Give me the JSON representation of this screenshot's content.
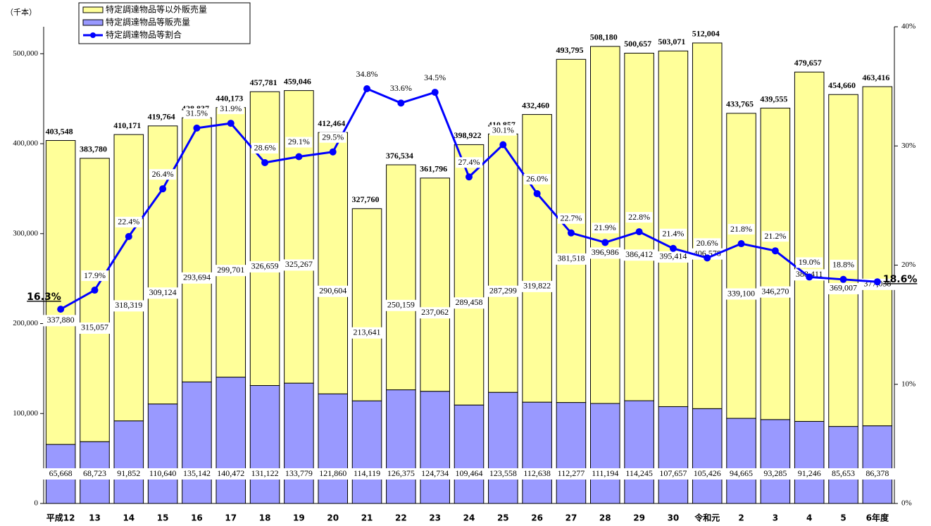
{
  "chart_data": {
    "type": "bar",
    "y_axis_label": "（千本）",
    "categories": [
      "平成12",
      "13",
      "14",
      "15",
      "16",
      "17",
      "18",
      "19",
      "20",
      "21",
      "22",
      "23",
      "24",
      "25",
      "26",
      "27",
      "28",
      "29",
      "30",
      "令和元",
      "2",
      "3",
      "4",
      "5",
      "6年度"
    ],
    "series": [
      {
        "name": "特定調達物品等以外販売量",
        "color": "#ffff99",
        "values": [
          337880,
          315057,
          318319,
          309124,
          293694,
          299701,
          326659,
          325267,
          290604,
          213641,
          250159,
          237062,
          289458,
          287299,
          319822,
          381518,
          396986,
          386412,
          395414,
          406578,
          339100,
          346270,
          388411,
          369007,
          377038
        ],
        "value_labels": [
          "337,880",
          "315,057",
          "318,319",
          "309,124",
          "293,694",
          "299,701",
          "326,659",
          "325,267",
          "290,604",
          "213,641",
          "250,159",
          "237,062",
          "289,458",
          "287,299",
          "319,822",
          "381,518",
          "396,986",
          "386,412",
          "395,414",
          "406,578",
          "339,100",
          "346,270",
          "388,411",
          "369,007",
          "377,038"
        ]
      },
      {
        "name": "特定調達物品等販売量",
        "color": "#9999ff",
        "values": [
          65668,
          68723,
          91852,
          110640,
          135142,
          140472,
          131122,
          133779,
          121860,
          114119,
          126375,
          124734,
          109464,
          123558,
          112638,
          112277,
          111194,
          114245,
          107657,
          105426,
          94665,
          93285,
          91246,
          85653,
          86378
        ],
        "value_labels": [
          "65,668",
          "68,723",
          "91,852",
          "110,640",
          "135,142",
          "140,472",
          "131,122",
          "133,779",
          "121,860",
          "114,119",
          "126,375",
          "124,734",
          "109,464",
          "123,558",
          "112,638",
          "112,277",
          "111,194",
          "114,245",
          "107,657",
          "105,426",
          "94,665",
          "93,285",
          "91,246",
          "85,653",
          "86,378"
        ]
      },
      {
        "name": "特定調達物品等割合",
        "color": "#0000ff",
        "type": "line",
        "axis": "y2",
        "values": [
          16.3,
          17.9,
          22.4,
          26.4,
          31.5,
          31.9,
          28.6,
          29.1,
          29.5,
          34.8,
          33.6,
          34.5,
          27.4,
          30.1,
          26.0,
          22.7,
          21.9,
          22.8,
          21.4,
          20.6,
          21.8,
          21.2,
          19.0,
          18.8,
          18.6
        ],
        "value_labels": [
          "16.3%",
          "17.9%",
          "22.4%",
          "26.4%",
          "31.5%",
          "31.9%",
          "28.6%",
          "29.1%",
          "29.5%",
          "34.8%",
          "33.6%",
          "34.5%",
          "27.4%",
          "30.1%",
          "26.0%",
          "22.7%",
          "21.9%",
          "22.8%",
          "21.4%",
          "20.6%",
          "21.8%",
          "21.2%",
          "19.0%",
          "18.8%",
          "18.6%"
        ]
      }
    ],
    "totals": [
      403548,
      383780,
      410171,
      419764,
      428837,
      440173,
      457781,
      459046,
      412464,
      327760,
      376534,
      361796,
      398922,
      410857,
      432460,
      493795,
      508180,
      500657,
      503071,
      512004,
      433765,
      439555,
      479657,
      454660,
      463416
    ],
    "total_labels": [
      "403,548",
      "383,780",
      "410,171",
      "419,764",
      "428,837",
      "440,173",
      "457,781",
      "459,046",
      "412,464",
      "327,760",
      "376,534",
      "361,796",
      "398,922",
      "410,857",
      "432,460",
      "493,795",
      "508,180",
      "500,657",
      "503,071",
      "512,004",
      "433,765",
      "439,555",
      "479,657",
      "454,660",
      "463,416"
    ],
    "ylim": [
      0,
      530000
    ],
    "yticks": [
      0,
      {
        "value": 100000,
        "label": "100,000"
      },
      {
        "value": 200000,
        "label": "200,000"
      },
      {
        "value": 300000,
        "label": "300,000"
      },
      {
        "value": 400000,
        "label": "400,000"
      },
      {
        "value": 500000,
        "label": "500,000"
      }
    ],
    "y2lim": [
      0,
      40
    ],
    "y2ticks": [
      {
        "value": 0,
        "label": "0%"
      },
      {
        "value": 10,
        "label": "10%"
      },
      {
        "value": 20,
        "label": "20%"
      },
      {
        "value": 30,
        "label": "30%"
      },
      {
        "value": 40,
        "label": "40%"
      }
    ],
    "legend": "upper left"
  }
}
